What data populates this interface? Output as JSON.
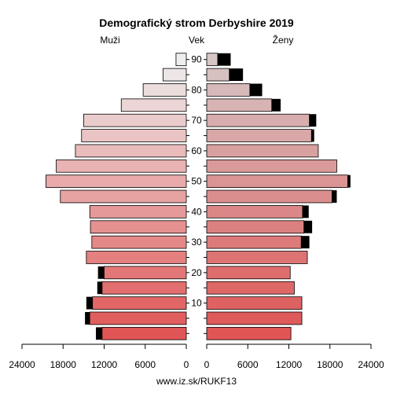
{
  "chart_data": {
    "type": "bar",
    "title": "Demografický strom Derbyshire 2019",
    "left_label": "Muži",
    "center_label": "Vek",
    "right_label": "Ženy",
    "footer": "www.iz.sk/RUKF13",
    "x_ticks_left": [
      "24000",
      "18000",
      "12000",
      "6000",
      "0"
    ],
    "x_ticks_right": [
      "0",
      "6000",
      "12000",
      "18000",
      "24000"
    ],
    "x_range": [
      0,
      24000
    ],
    "age_ticks": [
      "10",
      "20",
      "30",
      "40",
      "50",
      "60",
      "70",
      "80",
      "90"
    ],
    "age_groups": [
      "0-4",
      "5-9",
      "10-14",
      "15-19",
      "20-24",
      "25-29",
      "30-34",
      "35-39",
      "40-44",
      "45-49",
      "50-54",
      "55-59",
      "60-64",
      "65-69",
      "70-74",
      "75-79",
      "80-84",
      "85-89",
      "90+"
    ],
    "series": [
      {
        "name": "Muži",
        "values": [
          12300,
          14100,
          13700,
          12300,
          12000,
          14600,
          13800,
          14000,
          14100,
          18400,
          20500,
          19000,
          16200,
          15300,
          15000,
          9500,
          6300,
          3400,
          1500
        ],
        "excess": [
          900,
          700,
          900,
          700,
          900,
          0,
          0,
          0,
          0,
          0,
          0,
          0,
          0,
          0,
          0,
          0,
          0,
          0,
          0
        ]
      },
      {
        "name": "Ženy",
        "values": [
          12300,
          13900,
          13900,
          12800,
          12200,
          14700,
          13800,
          14200,
          14000,
          18300,
          20600,
          19000,
          16300,
          15300,
          15000,
          9500,
          6300,
          3300,
          1600
        ],
        "excess": [
          0,
          0,
          0,
          0,
          0,
          0,
          1200,
          1200,
          900,
          700,
          400,
          0,
          0,
          400,
          1000,
          1300,
          1800,
          2000,
          1900
        ]
      }
    ],
    "colors": {
      "bar_dark": "#e05555",
      "bar_light": "#eeeeee",
      "excess": "#000000"
    }
  }
}
